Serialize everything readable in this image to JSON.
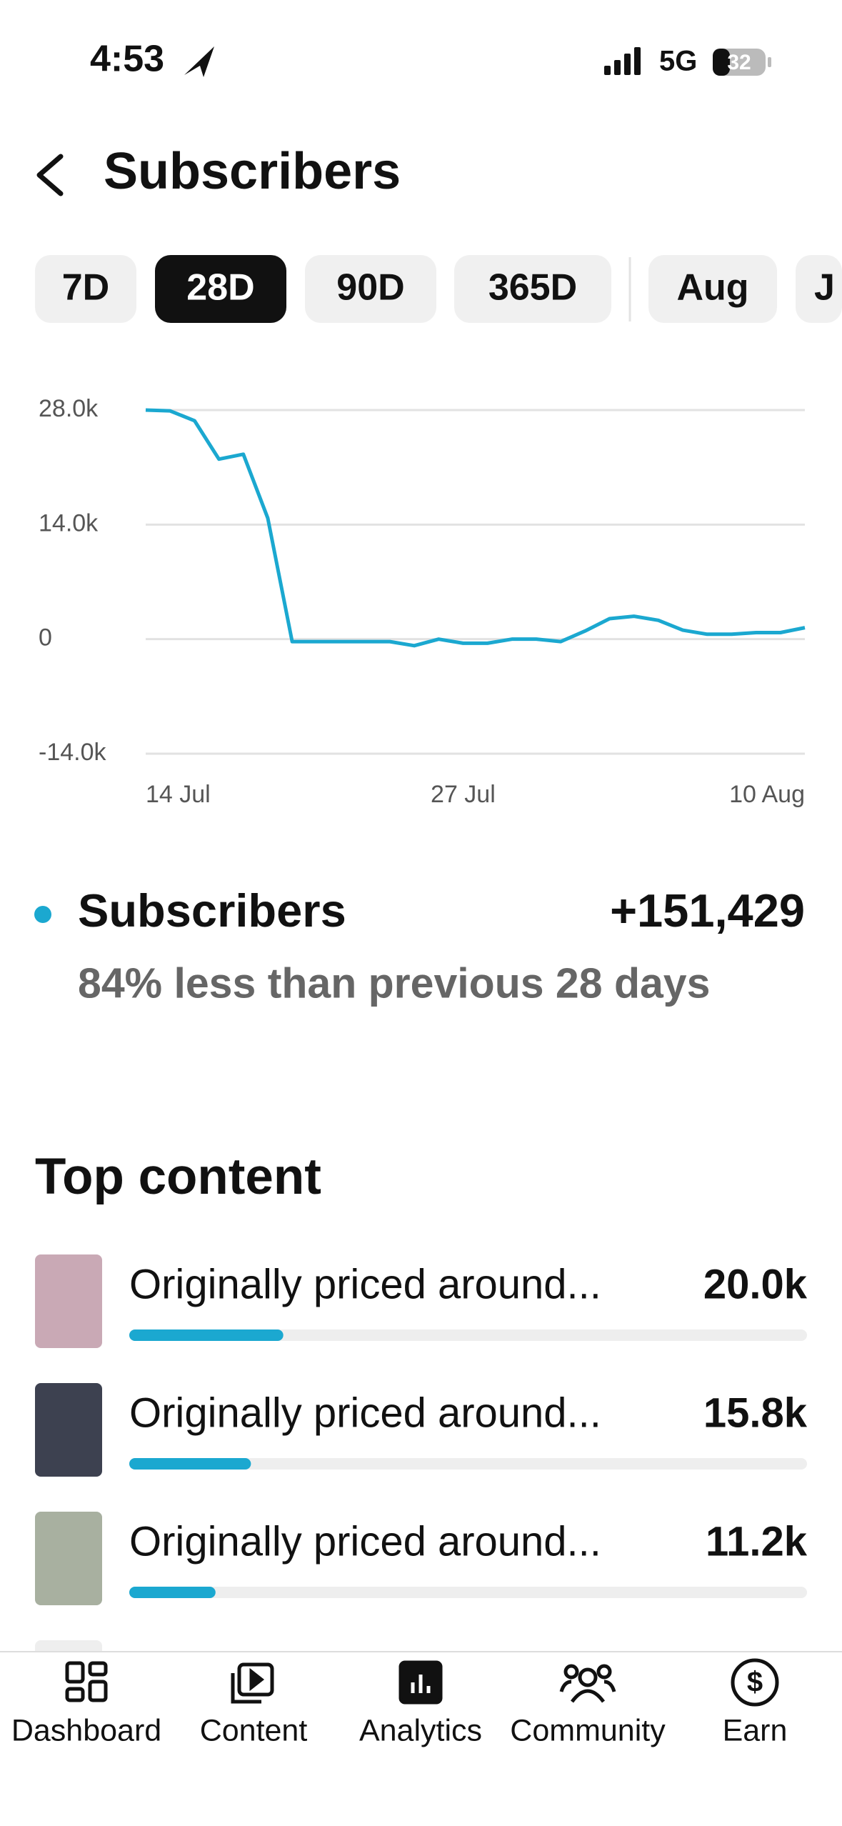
{
  "status_bar": {
    "time": "4:53",
    "network": "5G",
    "battery": "32"
  },
  "header": {
    "title": "Subscribers"
  },
  "tabs": {
    "items": [
      "7D",
      "28D",
      "90D",
      "365D",
      "Aug",
      "J"
    ],
    "selected": 1
  },
  "chart_data": {
    "type": "line",
    "categories": [
      "14 Jul",
      null,
      null,
      null,
      null,
      null,
      null,
      null,
      null,
      null,
      null,
      null,
      null,
      "27 Jul",
      null,
      null,
      null,
      null,
      null,
      null,
      null,
      null,
      null,
      null,
      null,
      null,
      null,
      "10 Aug"
    ],
    "series": [
      {
        "name": "Subscribers",
        "color": "#1ba8d0",
        "values": [
          28000,
          27900,
          26700,
          22000,
          22600,
          14800,
          -300,
          -300,
          -300,
          -300,
          -300,
          -800,
          0,
          -500,
          -500,
          0,
          0,
          -300,
          1000,
          2500,
          2800,
          2300,
          1100,
          600,
          600,
          800,
          800,
          1400
        ]
      }
    ],
    "ylim": [
      -14000,
      28000
    ],
    "yticks": [
      {
        "value": -14000,
        "label": "-14.0k"
      },
      0,
      {
        "value": 14000,
        "label": "14.0k"
      },
      {
        "value": 28000,
        "label": "28.0k"
      }
    ],
    "grid": true
  },
  "summary": {
    "total": "+151,429",
    "comparison": "84% less than previous 28 days"
  },
  "top_content": {
    "title": "Top content",
    "xlim": [
      0,
      88000
    ],
    "items": [
      {
        "title": "Originally priced around...",
        "value": 20000,
        "value_label": "20.0k"
      },
      {
        "title": "Originally priced around...",
        "value": 15800,
        "value_label": "15.8k"
      },
      {
        "title": "Originally priced around...",
        "value": 11200,
        "value_label": "11.2k"
      }
    ]
  },
  "nav": {
    "items": [
      "Dashboard",
      "Content",
      "Analytics",
      "Community",
      "Earn"
    ]
  }
}
